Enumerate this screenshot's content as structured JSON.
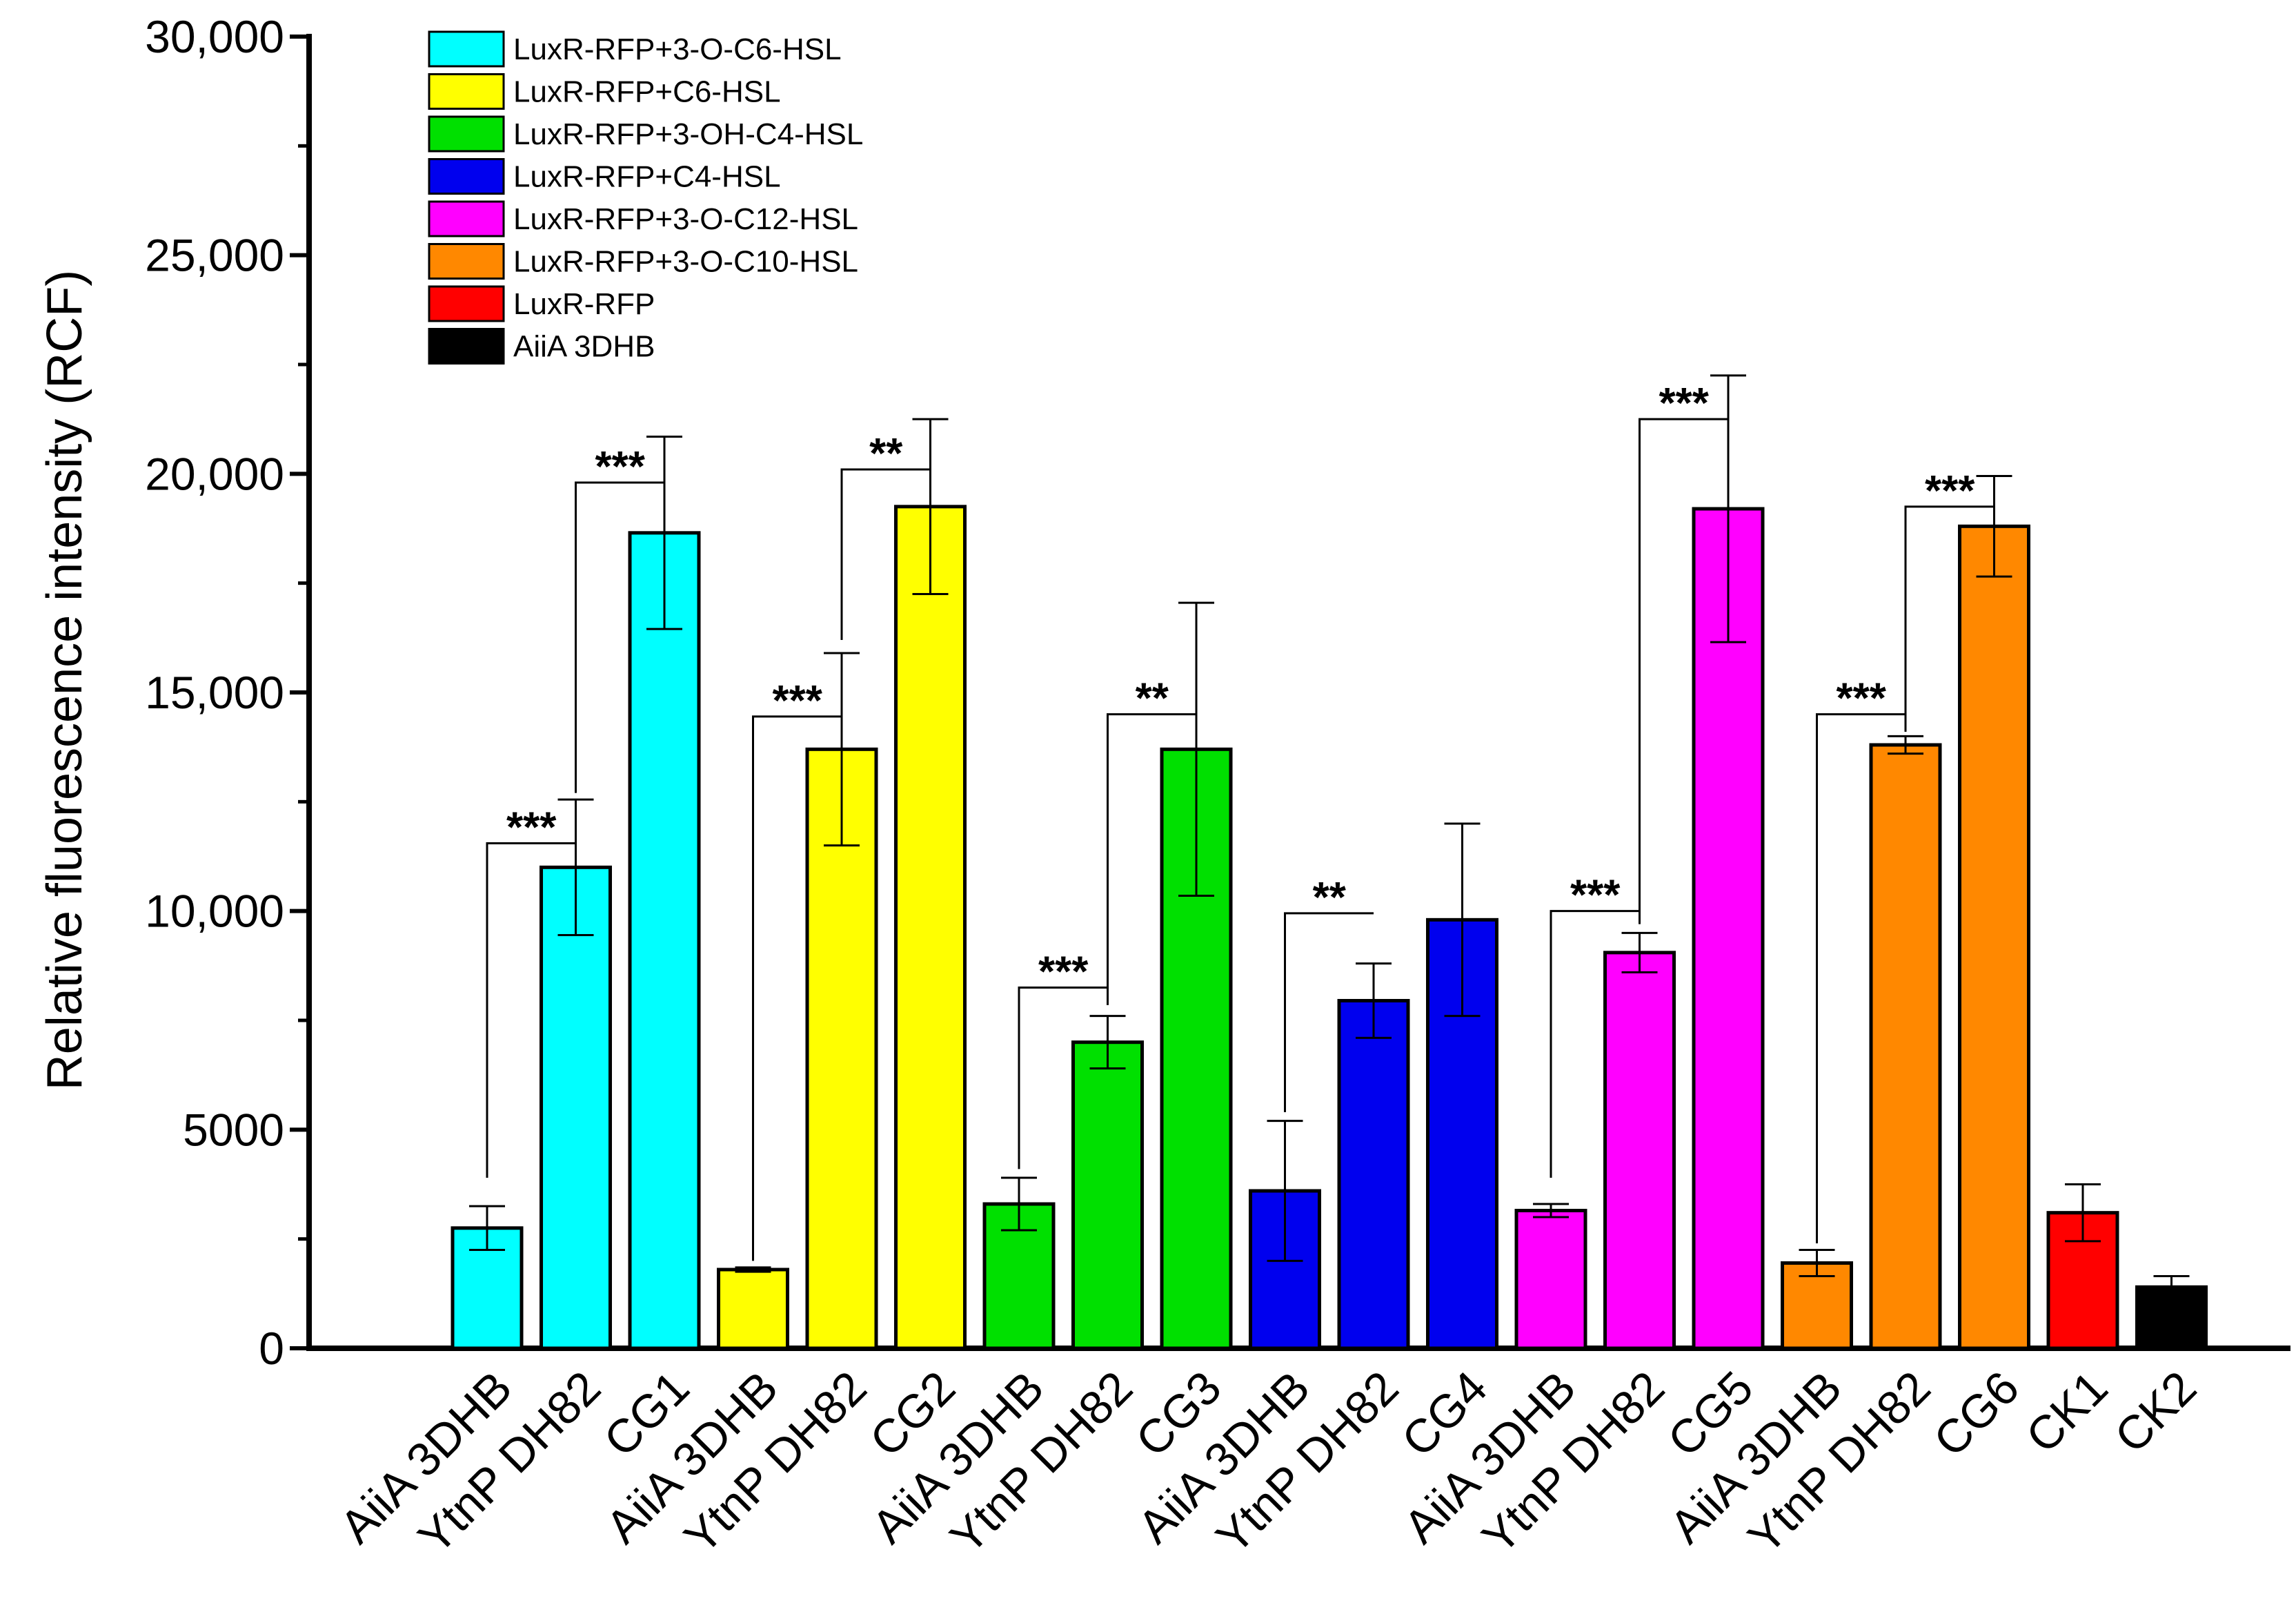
{
  "chart_data": {
    "type": "bar",
    "title": "",
    "xlabel": "",
    "ylabel": "Relative fluorescence intensity (RCF)",
    "ylim": [
      0,
      30000
    ],
    "y_ticks": [
      {
        "value": 0,
        "label": "0"
      },
      {
        "value": 5000,
        "label": "5000"
      },
      {
        "value": 10000,
        "label": "10,000"
      },
      {
        "value": 15000,
        "label": "15,000"
      },
      {
        "value": 20000,
        "label": "20,000"
      },
      {
        "value": 25000,
        "label": "25,000"
      },
      {
        "value": 30000,
        "label": "30,000"
      }
    ],
    "legend_position": "top-left",
    "legend": [
      {
        "label": "LuxR-RFP+3-O-C6-HSL",
        "color": "#00FFFF"
      },
      {
        "label": "LuxR-RFP+C6-HSL",
        "color": "#FFFF00"
      },
      {
        "label": "LuxR-RFP+3-OH-C4-HSL",
        "color": "#00E000"
      },
      {
        "label": "LuxR-RFP+C4-HSL",
        "color": "#0000EE"
      },
      {
        "label": "LuxR-RFP+3-O-C12-HSL",
        "color": "#FF00FF"
      },
      {
        "label": "LuxR-RFP+3-O-C10-HSL",
        "color": "#FF8800"
      },
      {
        "label": "LuxR-RFP",
        "color": "#FF0000"
      },
      {
        "label": "AiiA 3DHB",
        "color": "#000000"
      }
    ],
    "bars": [
      {
        "category": "AiiA 3DHB",
        "value": 2750,
        "error": 500,
        "color": "#00FFFF"
      },
      {
        "category": "YtnP DH82",
        "value": 11000,
        "error": 1550,
        "color": "#00FFFF"
      },
      {
        "category": "CG1",
        "value": 18650,
        "error": 2200,
        "color": "#00FFFF"
      },
      {
        "category": "AiiA 3DHB",
        "value": 1800,
        "error": 50,
        "color": "#FFFF00"
      },
      {
        "category": "YtnP DH82",
        "value": 13700,
        "error": 2200,
        "color": "#FFFF00"
      },
      {
        "category": "CG2",
        "value": 19250,
        "error": 2000,
        "color": "#FFFF00"
      },
      {
        "category": "AiiA 3DHB",
        "value": 3300,
        "error": 600,
        "color": "#00E000"
      },
      {
        "category": "YtnP DH82",
        "value": 7000,
        "error": 600,
        "color": "#00E000"
      },
      {
        "category": "CG3",
        "value": 13700,
        "error": 3350,
        "color": "#00E000"
      },
      {
        "category": "AiiA 3DHB",
        "value": 3600,
        "error": 1600,
        "color": "#0000EE"
      },
      {
        "category": "YtnP DH82",
        "value": 7950,
        "error": 850,
        "color": "#0000EE"
      },
      {
        "category": "CG4",
        "value": 9800,
        "error": 2200,
        "color": "#0000EE"
      },
      {
        "category": "AiiA 3DHB",
        "value": 3150,
        "error": 150,
        "color": "#FF00FF"
      },
      {
        "category": "YtnP DH82",
        "value": 9050,
        "error": 450,
        "color": "#FF00FF"
      },
      {
        "category": "CG5",
        "value": 19200,
        "error": 3050,
        "color": "#FF00FF"
      },
      {
        "category": "AiiA 3DHB",
        "value": 1950,
        "error": 300,
        "color": "#FF8800"
      },
      {
        "category": "YtnP DH82",
        "value": 13800,
        "error": 200,
        "color": "#FF8800"
      },
      {
        "category": "CG6",
        "value": 18800,
        "error": 1150,
        "color": "#FF8800"
      },
      {
        "category": "CK1",
        "value": 3100,
        "error": 650,
        "color": "#FF0000"
      },
      {
        "category": "CK2",
        "value": 1400,
        "error": 250,
        "color": "#000000"
      }
    ],
    "significance": [
      {
        "from": 0,
        "to": 1,
        "label": "***",
        "from_y": 3900,
        "to_y": 11200,
        "bracket_y": 11550
      },
      {
        "from": 1,
        "to": 2,
        "label": "***",
        "from_y": 12700,
        "to_y": 19800,
        "bracket_y": 19800
      },
      {
        "from": 3,
        "to": 4,
        "label": "***",
        "from_y": 2000,
        "to_y": 14450,
        "bracket_y": 14450
      },
      {
        "from": 4,
        "to": 5,
        "label": "**",
        "from_y": 16200,
        "to_y": 20100,
        "bracket_y": 20100
      },
      {
        "from": 6,
        "to": 7,
        "label": "***",
        "from_y": 4100,
        "to_y": 8250,
        "bracket_y": 8250
      },
      {
        "from": 7,
        "to": 8,
        "label": "**",
        "from_y": 7850,
        "to_y": 14500,
        "bracket_y": 14500
      },
      {
        "from": 9,
        "to": 10,
        "label": "**",
        "from_y": 5400,
        "to_y": 9950,
        "bracket_y": 9950
      },
      {
        "from": 12,
        "to": 13,
        "label": "***",
        "from_y": 3900,
        "to_y": 10000,
        "bracket_y": 10000
      },
      {
        "from": 13,
        "to": 14,
        "label": "***",
        "from_y": 9700,
        "to_y": 21250,
        "bracket_y": 21250
      },
      {
        "from": 15,
        "to": 16,
        "label": "***",
        "from_y": 2400,
        "to_y": 14500,
        "bracket_y": 14500
      },
      {
        "from": 16,
        "to": 17,
        "label": "***",
        "from_y": 14100,
        "to_y": 19250,
        "bracket_y": 19250
      }
    ]
  }
}
